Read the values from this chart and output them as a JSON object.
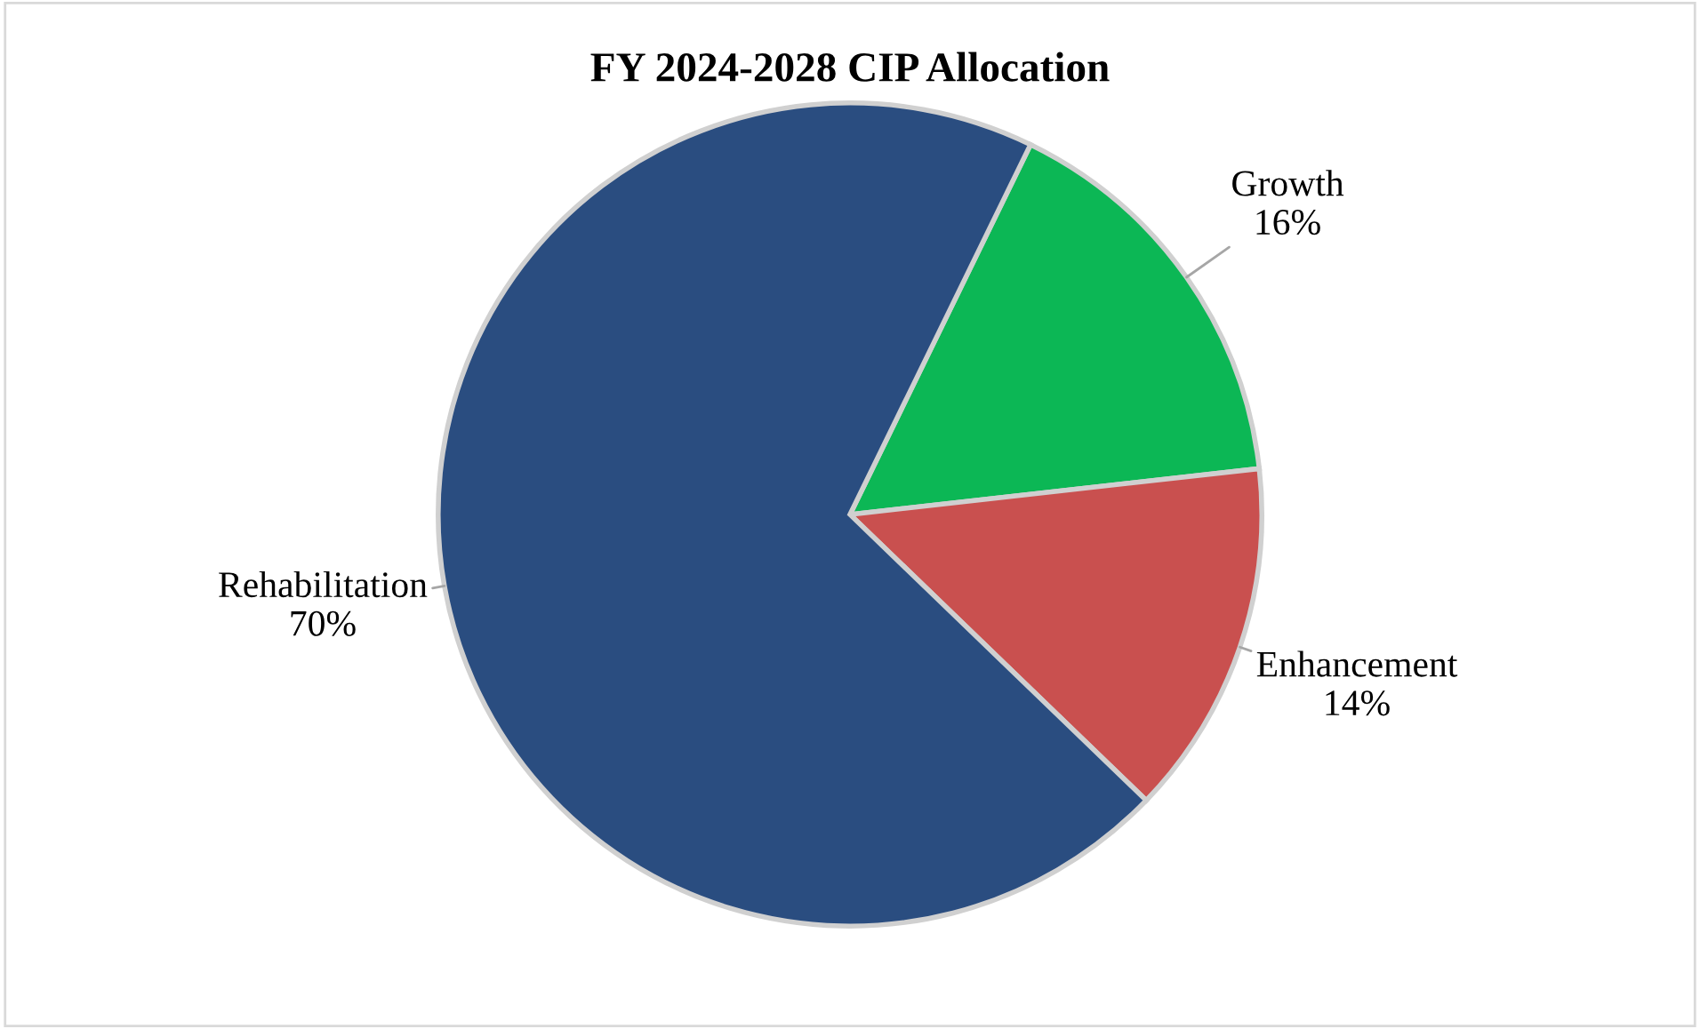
{
  "chart_data": {
    "type": "pie",
    "title": "FY 2024-2028 CIP Allocation",
    "categories": [
      "Growth",
      "Enhancement",
      "Rehabilitation"
    ],
    "values": [
      16,
      14,
      70
    ],
    "colors": [
      "#0cb755",
      "#c9504f",
      "#2a4d80"
    ],
    "value_labels": [
      "16%",
      "14%",
      "70%"
    ],
    "legend": false
  }
}
